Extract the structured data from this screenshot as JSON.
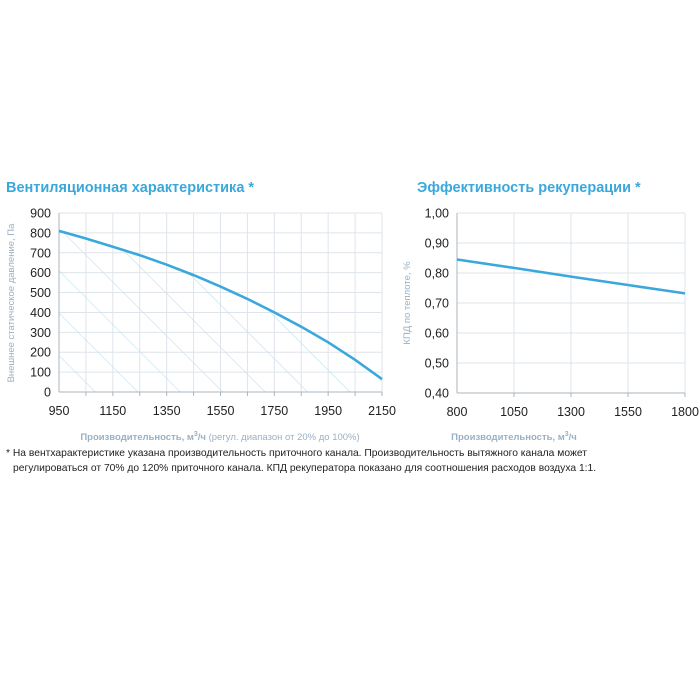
{
  "chart_data": [
    {
      "type": "area",
      "title": "Вентиляционная характеристика *",
      "xlabel_main": "Производительность, м",
      "xlabel_sup": "3",
      "xlabel_unit": "/ч",
      "xlabel_note": " (регул. диапазон от 20% до 100%)",
      "ylabel": "Внешнее статическое давление, Па",
      "xlim": [
        950,
        2150
      ],
      "ylim": [
        0,
        900
      ],
      "xticks": [
        "950",
        "1150",
        "1350",
        "1550",
        "1750",
        "1950",
        "2150"
      ],
      "yticks": [
        "0",
        "100",
        "200",
        "300",
        "400",
        "500",
        "600",
        "700",
        "800",
        "900"
      ],
      "grid": true,
      "hatched_area": true,
      "x": [
        950,
        1050,
        1150,
        1250,
        1350,
        1450,
        1550,
        1650,
        1750,
        1850,
        1950,
        2050,
        2150
      ],
      "y": [
        810,
        772,
        730,
        688,
        640,
        588,
        530,
        468,
        400,
        328,
        250,
        162,
        65
      ],
      "color": "#3aa8dc"
    },
    {
      "type": "line",
      "title": "Эффективность рекуперации *",
      "xlabel_main": "Производительность, м",
      "xlabel_sup": "3",
      "xlabel_unit": "/ч",
      "ylabel": "КПД по теплоте, %",
      "xlim": [
        800,
        1800
      ],
      "ylim": [
        0.4,
        1.0
      ],
      "xticks": [
        "800",
        "1050",
        "1300",
        "1550",
        "1800"
      ],
      "yticks": [
        "0,40",
        "0,50",
        "0,60",
        "0,70",
        "0,80",
        "0,90",
        "1,00"
      ],
      "grid": true,
      "x": [
        800,
        1050,
        1300,
        1550,
        1800
      ],
      "y": [
        0.845,
        0.817,
        0.788,
        0.76,
        0.732
      ],
      "color": "#3aa8dc"
    }
  ],
  "footnote": {
    "line1": "* На вентхарактеристике указана производительность приточного канала. Производительность вытяжного канала может",
    "line2": "регулироваться от 70% до 120% приточного канала. КПД рекуператора показано для соотношения расходов воздуха 1:1."
  }
}
